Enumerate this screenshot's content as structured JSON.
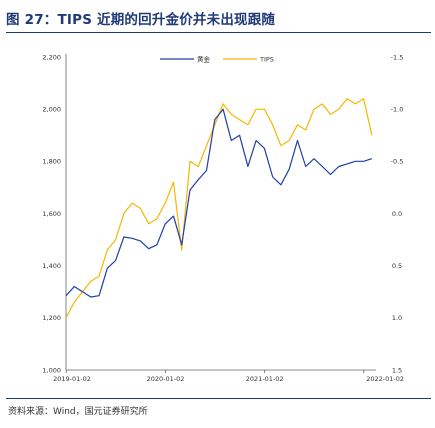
{
  "title": "图 27：TIPS 近期的回升金价并未出现跟随",
  "source": "资料来源：Wind，国元证券研究所",
  "colors": {
    "gold": "#1f3fa8",
    "tips": "#f5b800",
    "title": "#1f3a78"
  },
  "chart_data": {
    "type": "line",
    "x_ticks": [
      "2019-01-02",
      "2020-01-02",
      "2021-01-02",
      "2022-01-02"
    ],
    "y_left": {
      "min": 1000,
      "max": 2200,
      "ticks": [
        "1,000",
        "1,200",
        "1,400",
        "1,600",
        "1,800",
        "2,000",
        "2,200"
      ]
    },
    "y_right": {
      "top": -1.5,
      "bottom": 1.5,
      "inverted": true,
      "ticks": [
        "-1.5",
        "-1.0",
        "-0.5",
        "0.0",
        "0.5",
        "1.0",
        "1.5"
      ]
    },
    "legend": [
      "黄金",
      "TIPS"
    ],
    "series": [
      {
        "name": "黄金",
        "axis": "left",
        "x": [
          "2019-01",
          "2019-02",
          "2019-03",
          "2019-04",
          "2019-05",
          "2019-06",
          "2019-07",
          "2019-08",
          "2019-09",
          "2019-10",
          "2019-11",
          "2019-12",
          "2020-01",
          "2020-02",
          "2020-03",
          "2020-04",
          "2020-05",
          "2020-06",
          "2020-07",
          "2020-08",
          "2020-09",
          "2020-10",
          "2020-11",
          "2020-12",
          "2021-01",
          "2021-02",
          "2021-03",
          "2021-04",
          "2021-05",
          "2021-06",
          "2021-07",
          "2021-08",
          "2021-09",
          "2021-10",
          "2021-11",
          "2021-12",
          "2022-01",
          "2022-02"
        ],
        "values": [
          1285,
          1320,
          1300,
          1280,
          1285,
          1390,
          1420,
          1510,
          1505,
          1495,
          1465,
          1480,
          1560,
          1590,
          1480,
          1690,
          1730,
          1765,
          1960,
          2000,
          1880,
          1900,
          1780,
          1880,
          1850,
          1740,
          1710,
          1770,
          1880,
          1780,
          1810,
          1780,
          1750,
          1780,
          1790,
          1800,
          1800,
          1810
        ]
      },
      {
        "name": "TIPS",
        "axis": "right",
        "x": [
          "2019-01",
          "2019-02",
          "2019-03",
          "2019-04",
          "2019-05",
          "2019-06",
          "2019-07",
          "2019-08",
          "2019-09",
          "2019-10",
          "2019-11",
          "2019-12",
          "2020-01",
          "2020-02",
          "2020-03",
          "2020-04",
          "2020-05",
          "2020-06",
          "2020-07",
          "2020-08",
          "2020-09",
          "2020-10",
          "2020-11",
          "2020-12",
          "2021-01",
          "2021-02",
          "2021-03",
          "2021-04",
          "2021-05",
          "2021-06",
          "2021-07",
          "2021-08",
          "2021-09",
          "2021-10",
          "2021-11",
          "2021-12",
          "2022-01",
          "2022-02"
        ],
        "values": [
          1.0,
          0.85,
          0.75,
          0.65,
          0.6,
          0.35,
          0.25,
          0.0,
          -0.1,
          -0.05,
          0.1,
          0.05,
          -0.1,
          -0.3,
          0.35,
          -0.5,
          -0.45,
          -0.65,
          -0.85,
          -1.05,
          -0.95,
          -0.9,
          -0.85,
          -1.0,
          -1.0,
          -0.85,
          -0.65,
          -0.7,
          -0.85,
          -0.8,
          -1.0,
          -1.05,
          -0.95,
          -1.0,
          -1.1,
          -1.05,
          -1.1,
          -0.75
        ]
      }
    ]
  }
}
